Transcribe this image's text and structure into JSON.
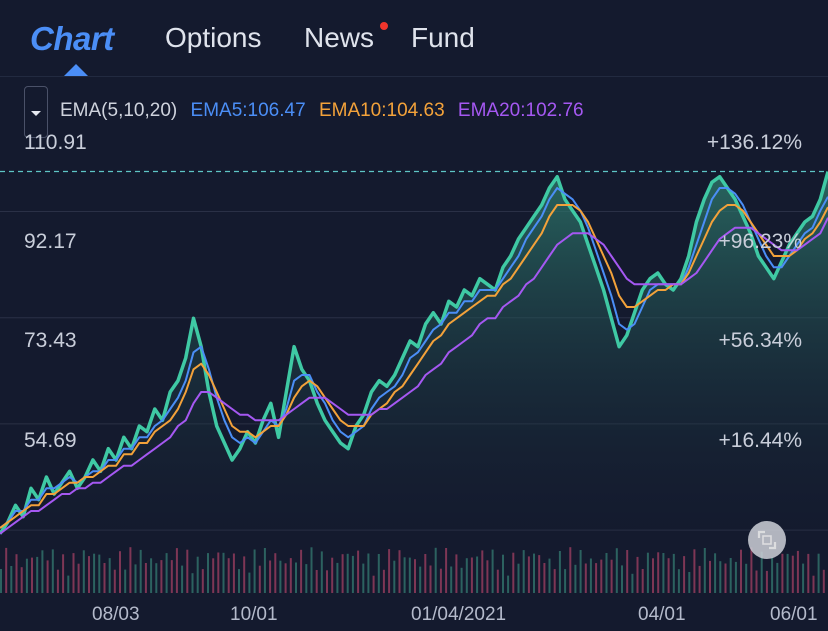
{
  "nav": {
    "logo": "Chart",
    "items": [
      "Options",
      "News",
      "Fund"
    ],
    "news_badge": true
  },
  "indicator": {
    "label": "EMA(5,10,20)",
    "ema5": "EMA5:106.47",
    "ema10": "EMA10:104.63",
    "ema20": "EMA20:102.76"
  },
  "y_labels_left": [
    "110.91",
    "92.17",
    "73.43",
    "54.69"
  ],
  "y_labels_right": [
    "+136.12%",
    "+96.23%",
    "+56.34%",
    "+16.44%"
  ],
  "x_labels": [
    "08/03",
    "10/01",
    "01/04/2021",
    "04/01",
    "06/01"
  ],
  "colors": {
    "price": "#3fc9a4",
    "ema5": "#4b8ef6",
    "ema10": "#f3a23a",
    "ema20": "#a558f2",
    "background": "#141a2e",
    "grid": "#2a3046",
    "current_price_line": "#5ec6c6"
  },
  "chart_data": {
    "type": "line",
    "title": "",
    "ylim": [
      45,
      120
    ],
    "y_ticks": [
      110.91,
      92.17,
      73.43,
      54.69
    ],
    "current_price": 110.91,
    "x_ticks": [
      "08/03",
      "10/01",
      "01/04/2021",
      "04/01",
      "06/01"
    ],
    "series": [
      {
        "name": "price",
        "values": [
          47,
          49,
          52,
          50,
          55,
          53,
          57,
          54,
          56,
          58,
          55,
          57,
          60,
          58,
          62,
          60,
          64,
          62,
          66,
          65,
          69,
          67,
          72,
          74,
          78,
          85,
          80,
          72,
          66,
          63,
          60,
          62,
          65,
          63,
          67,
          70,
          64,
          72,
          80,
          76,
          74,
          70,
          67,
          65,
          63,
          62,
          66,
          68,
          72,
          74,
          73,
          75,
          78,
          81,
          80,
          84,
          86,
          84,
          88,
          87,
          90,
          89,
          92,
          91,
          90,
          94,
          96,
          99,
          101,
          103,
          105,
          108,
          110,
          106,
          104,
          102,
          98,
          94,
          90,
          85,
          80,
          82,
          86,
          90,
          92,
          93,
          91,
          90,
          92,
          96,
          102,
          106,
          109,
          110,
          108,
          106,
          103,
          100,
          96,
          94,
          92,
          95,
          98,
          100,
          102,
          103,
          106,
          110.9
        ]
      },
      {
        "name": "EMA5",
        "values": [
          48,
          49,
          51,
          51,
          53,
          53,
          55,
          55,
          56,
          57,
          56,
          57,
          58,
          58,
          60,
          60,
          62,
          62,
          64,
          64,
          66,
          67,
          69,
          71,
          74,
          79,
          80,
          76,
          71,
          67,
          64,
          63,
          64,
          63,
          65,
          67,
          66,
          69,
          74,
          75,
          75,
          72,
          70,
          67,
          65,
          64,
          65,
          66,
          69,
          71,
          72,
          73,
          75,
          78,
          79,
          81,
          83,
          84,
          86,
          86,
          88,
          88,
          90,
          90,
          90,
          92,
          94,
          96,
          99,
          101,
          103,
          106,
          108,
          107,
          106,
          104,
          101,
          97,
          93,
          89,
          84,
          83,
          84,
          87,
          90,
          91,
          91,
          91,
          91,
          94,
          98,
          102,
          106,
          108,
          108,
          107,
          105,
          102,
          99,
          96,
          94,
          94,
          96,
          98,
          100,
          101,
          104,
          106.47
        ]
      },
      {
        "name": "EMA10",
        "values": [
          48,
          49,
          50,
          51,
          52,
          52,
          54,
          54,
          55,
          56,
          56,
          57,
          57,
          58,
          59,
          59,
          61,
          61,
          63,
          63,
          65,
          66,
          67,
          69,
          72,
          76,
          77,
          75,
          72,
          69,
          66,
          65,
          65,
          64,
          65,
          66,
          66,
          68,
          71,
          73,
          74,
          73,
          71,
          69,
          67,
          66,
          66,
          66,
          68,
          69,
          70,
          72,
          73,
          75,
          77,
          79,
          81,
          82,
          84,
          85,
          86,
          87,
          88,
          89,
          89,
          91,
          92,
          94,
          96,
          98,
          100,
          103,
          105,
          105,
          105,
          104,
          102,
          99,
          96,
          93,
          89,
          87,
          87,
          88,
          89,
          90,
          90,
          91,
          91,
          93,
          96,
          99,
          102,
          104,
          105,
          105,
          104,
          102,
          100,
          98,
          96,
          96,
          96,
          97,
          99,
          100,
          102,
          104.63
        ]
      },
      {
        "name": "EMA20",
        "values": [
          47,
          48,
          49,
          50,
          51,
          51,
          52,
          53,
          54,
          54,
          55,
          55,
          56,
          56,
          57,
          58,
          59,
          59,
          60,
          61,
          62,
          63,
          64,
          66,
          67,
          70,
          72,
          72,
          71,
          70,
          69,
          68,
          68,
          67,
          67,
          67,
          67,
          68,
          69,
          70,
          71,
          71,
          71,
          70,
          69,
          68,
          68,
          68,
          68,
          69,
          69,
          70,
          71,
          72,
          73,
          75,
          76,
          77,
          79,
          80,
          81,
          82,
          84,
          85,
          85,
          87,
          88,
          89,
          91,
          92,
          94,
          96,
          98,
          99,
          100,
          100,
          100,
          99,
          98,
          96,
          94,
          92,
          91,
          91,
          91,
          91,
          91,
          91,
          91,
          92,
          93,
          95,
          97,
          99,
          100,
          101,
          101,
          101,
          100,
          99,
          98,
          97,
          97,
          97,
          98,
          99,
          100,
          102.76
        ]
      }
    ]
  }
}
